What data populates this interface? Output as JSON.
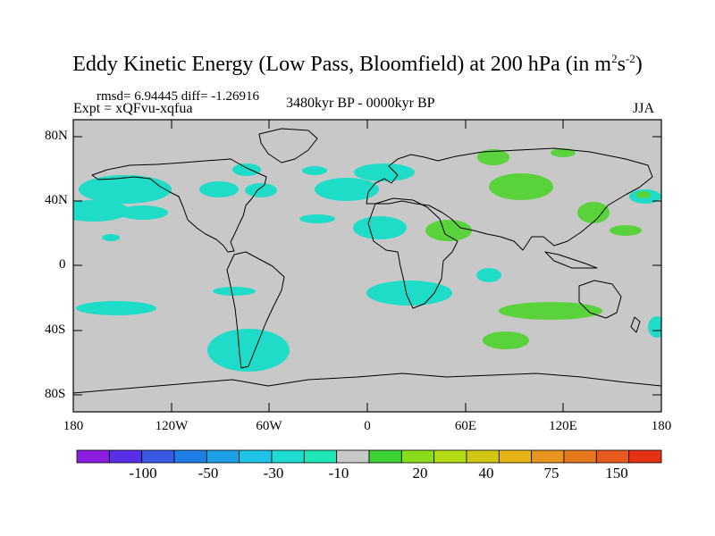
{
  "title": {
    "main": "Eddy Kinetic Energy (Low Pass, Bloomfield) at 200 hPa (in m",
    "sup1": "2",
    "mid": "s",
    "sup2": "-2",
    "end": ")"
  },
  "stats": "rmsd= 6.94445  diff= -1.26916",
  "expt": "Expt = xQFvu-xqfua",
  "period": "3480kyr BP - 0000kyr BP",
  "season": "JJA",
  "axes": {
    "lat_labels": [
      "80N",
      "40N",
      "0",
      "40S",
      "80S"
    ],
    "lon_labels": [
      "180",
      "120W",
      "60W",
      "0",
      "60E",
      "120E",
      "180"
    ]
  },
  "colorbar": {
    "colors": [
      "#8c1ee0",
      "#5a2ee6",
      "#3a5ae6",
      "#1e7ee6",
      "#1ea0e6",
      "#1ec3e6",
      "#1edcd2",
      "#1ee6b4",
      "#c8c8c8",
      "#3cd232",
      "#8cdc1e",
      "#b4dc14",
      "#d2c814",
      "#e6b414",
      "#e6961e",
      "#e6781e",
      "#e65a1e",
      "#e63214"
    ],
    "labels": [
      "-100",
      "-50",
      "-30",
      "-10",
      "20",
      "40",
      "75",
      "150"
    ]
  },
  "map": {
    "background": "#c8c8c8",
    "negative_color": "#1edcc8",
    "positive_color": "#5ad23c",
    "coast_color": "#000000"
  }
}
